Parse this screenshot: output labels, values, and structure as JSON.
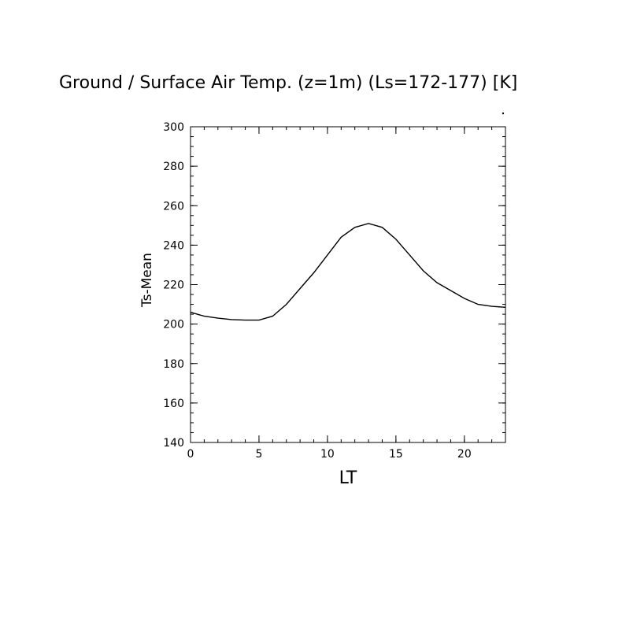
{
  "chart_data": {
    "type": "line",
    "title": "Ground / Surface Air Temp. (z=1m) (Ls=172-177) [K]",
    "xlabel": "LT",
    "ylabel": "Ts-Mean",
    "xlim": [
      0,
      23
    ],
    "ylim": [
      140,
      300
    ],
    "x_ticks": [
      0,
      5,
      10,
      15,
      20
    ],
    "y_ticks": [
      140,
      160,
      180,
      200,
      220,
      240,
      260,
      280,
      300
    ],
    "grid": false,
    "series": [
      {
        "x": [
          0,
          1,
          2,
          3,
          4,
          5,
          6,
          7,
          8,
          9,
          10,
          11,
          12,
          13,
          14,
          15,
          16,
          17,
          18,
          19,
          20,
          21,
          22,
          23
        ],
        "values": [
          206,
          204,
          203,
          202.3,
          202,
          202,
          204,
          210,
          218,
          226,
          235,
          244,
          249,
          251,
          249,
          243,
          235,
          227,
          221,
          217,
          213,
          210,
          209,
          208.5
        ]
      }
    ],
    "line_color": "#000000"
  }
}
